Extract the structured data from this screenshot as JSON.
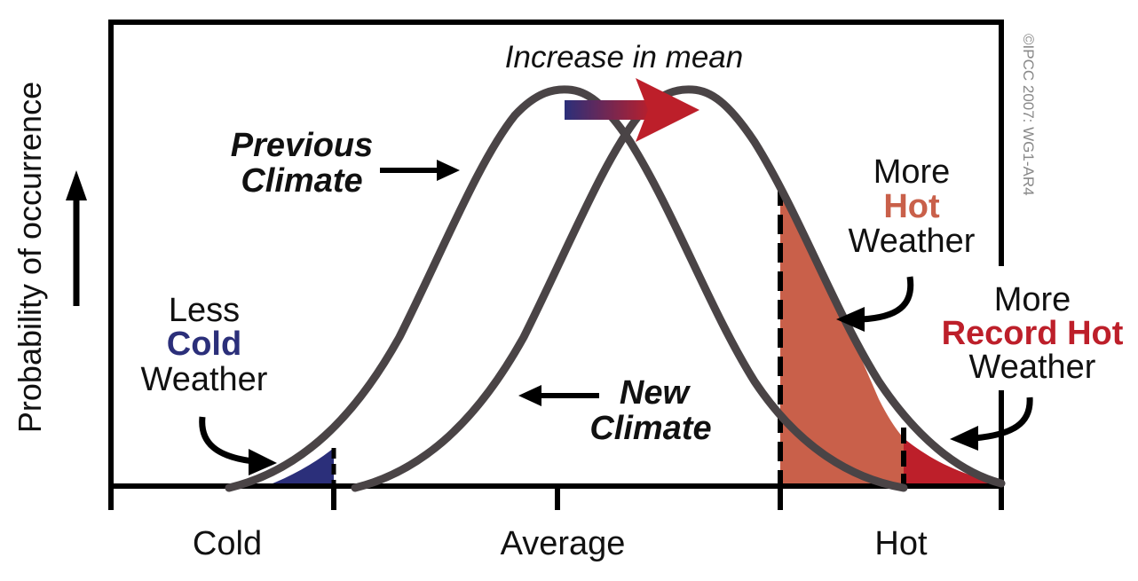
{
  "figure": {
    "credit": "©IPCC  2007: WG1-AR4",
    "y_axis_label": "Probability of occurrence",
    "x_ticks": [
      "Cold",
      "Average",
      "Hot"
    ],
    "arrow_label": "Increase in mean",
    "previous_climate": [
      "Previous",
      "Climate"
    ],
    "new_climate": [
      "New",
      "Climate"
    ],
    "less_cold": {
      "line1": "Less",
      "line2": "Cold",
      "line3": "Weather"
    },
    "more_hot": {
      "line1": "More",
      "line2": "Hot",
      "line3": "Weather"
    },
    "more_record_hot": {
      "line1": "More",
      "line2": "Record Hot",
      "line3": "Weather"
    },
    "colors": {
      "curve": "#4a4446",
      "cold_fill": "#2b2f7a",
      "hot_fill": "#c9604a",
      "record_hot_fill": "#bd1f2a",
      "cold_text": "#2b2f7a",
      "hot_text": "#c9604a",
      "record_text": "#bd1f2a",
      "frame": "#000000"
    }
  }
}
